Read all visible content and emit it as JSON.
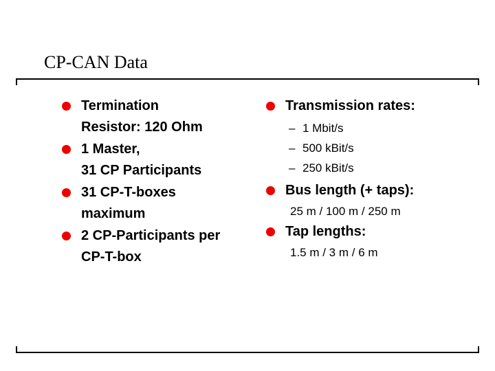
{
  "slide": {
    "title": "CP-CAN Data",
    "bullet_color": "#ee0000",
    "text_color": "#000000",
    "left_column": {
      "items": [
        {
          "text": "Termination\nResistor: 120 Ohm"
        },
        {
          "text": "1 Master,\n31 CP Participants"
        },
        {
          "text": "31 CP-T-boxes\nmaximum"
        },
        {
          "text": "2 CP-Participants per\nCP-T-box"
        }
      ]
    },
    "right_column": {
      "items": [
        {
          "label": "Transmission rates:",
          "subitem_marker": "–",
          "subitems": [
            "1 Mbit/s",
            "500 kBit/s",
            "250 kBit/s"
          ]
        },
        {
          "label": "Bus length (+ taps):",
          "subitems": [
            "25 m / 100 m / 250 m"
          ]
        },
        {
          "label": "Tap lengths:",
          "subitems": [
            "1.5 m / 3 m / 6 m"
          ]
        }
      ]
    }
  }
}
